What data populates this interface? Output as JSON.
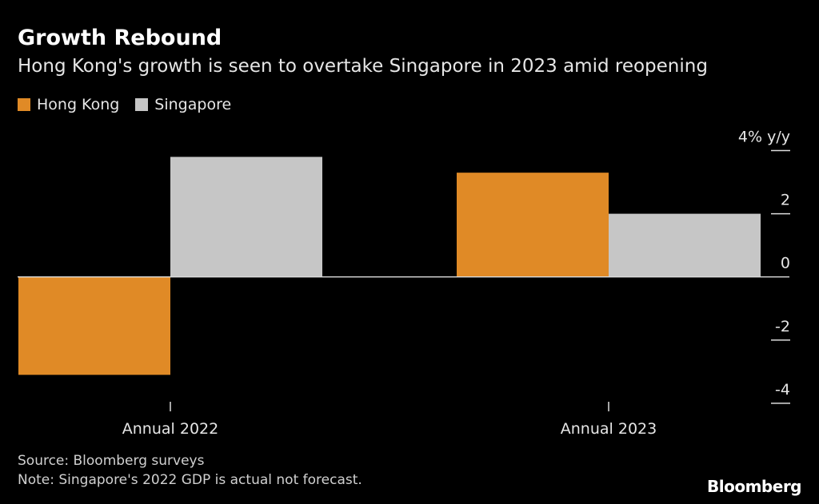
{
  "title": "Growth Rebound",
  "subtitle": "Hong Kong's growth is seen to overtake Singapore in 2023 amid reopening",
  "source": "Source: Bloomberg surveys",
  "note": "Note: Singapore's 2022 GDP is actual not forecast.",
  "logo": "Bloomberg",
  "chart_data": {
    "type": "bar",
    "categories": [
      "Annual 2022",
      "Annual 2023"
    ],
    "series": [
      {
        "name": "Hong Kong",
        "values": [
          -3.1,
          3.3
        ],
        "color": "#e08a26"
      },
      {
        "name": "Singapore",
        "values": [
          3.8,
          2.0
        ],
        "color": "#c6c6c6"
      }
    ],
    "ylabel": "4% y/y",
    "ylim": [
      -4.5,
      4.5
    ],
    "yticks": [
      4,
      2,
      0,
      -2,
      -4
    ],
    "ytick_labels": [
      "4% y/y",
      "2",
      "0",
      "-2",
      "-4"
    ],
    "legend": "top-left",
    "grid": false
  }
}
